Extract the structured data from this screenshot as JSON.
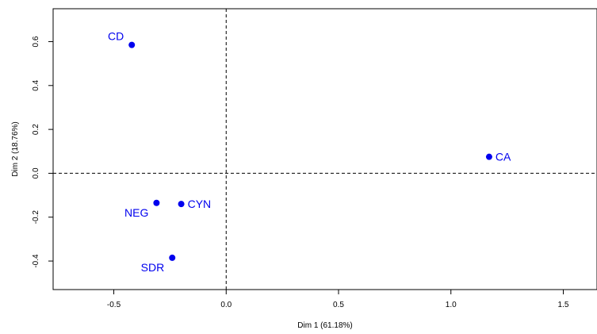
{
  "chart_data": {
    "type": "scatter",
    "title": "",
    "xlabel": "Dim 1 (61.18%)",
    "ylabel": "Dim 2 (18.76%)",
    "xlim": [
      -0.77,
      1.65
    ],
    "ylim": [
      -0.53,
      0.75
    ],
    "x_ticks": [
      -0.5,
      0.0,
      0.5,
      1.0,
      1.5
    ],
    "y_ticks": [
      -0.4,
      -0.2,
      0.0,
      0.2,
      0.4,
      0.6
    ],
    "x_tick_labels": [
      "-0.5",
      "0.0",
      "0.5",
      "1.0",
      "1.5"
    ],
    "y_tick_labels": [
      "-0.4",
      "-0.2",
      "0.0",
      "0.2",
      "0.4",
      "0.6"
    ],
    "grid": false,
    "reference_lines": {
      "x": 0,
      "y": 0,
      "style": "dashed"
    },
    "point_color": "#0000ee",
    "points": [
      {
        "label": "CD",
        "x": -0.42,
        "y": 0.585,
        "label_side": "top-left"
      },
      {
        "label": "CA",
        "x": 1.17,
        "y": 0.075,
        "label_side": "right"
      },
      {
        "label": "NEG",
        "x": -0.31,
        "y": -0.135,
        "label_side": "bottom-left"
      },
      {
        "label": "CYN",
        "x": -0.2,
        "y": -0.14,
        "label_side": "right"
      },
      {
        "label": "SDR",
        "x": -0.24,
        "y": -0.385,
        "label_side": "bottom-left"
      }
    ]
  }
}
